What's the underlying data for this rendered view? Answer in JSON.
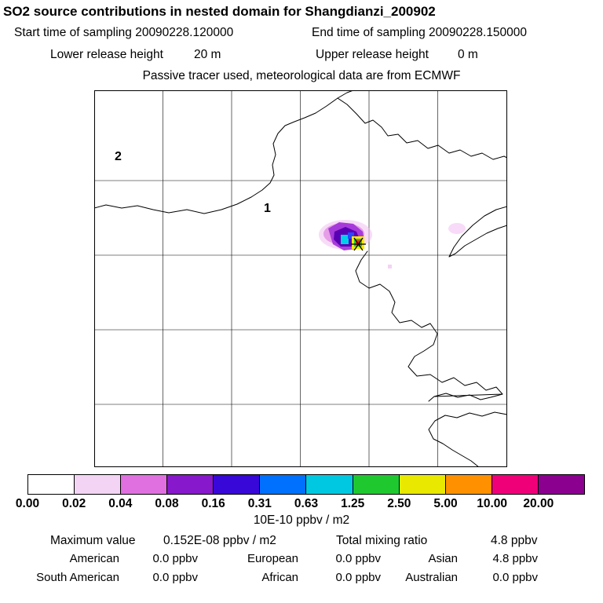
{
  "header": {
    "title": "SO2 source contributions in nested domain for Shangdianzi_200902",
    "start_line": "Start time of sampling 20090228.120000",
    "end_line": "End time of sampling 20090228.150000",
    "lower_release_label": "Lower release height",
    "lower_release_value": "20 m",
    "upper_release_label": "Upper release height",
    "upper_release_value": "0 m",
    "tracer_line": "Passive tracer used, meteorological data are from ECMWF"
  },
  "map": {
    "domain_label_outer": "2",
    "domain_label_inner": "1"
  },
  "footer": {
    "unit_label": "10E-10 ppbv / m2",
    "maximum_label": "Maximum value",
    "maximum_value": "0.152E-08 ppbv / m2",
    "total_label": "Total mixing ratio",
    "total_value": "4.8 ppbv",
    "regions": [
      {
        "name": "American",
        "value": "0.0 ppbv"
      },
      {
        "name": "European",
        "value": "0.0 ppbv"
      },
      {
        "name": "Asian",
        "value": "4.8 ppbv"
      },
      {
        "name": "South American",
        "value": "0.0 ppbv"
      },
      {
        "name": "African",
        "value": "0.0 ppbv"
      },
      {
        "name": "Australian",
        "value": "0.0 ppbv"
      }
    ]
  },
  "chart_data": {
    "type": "heatmap",
    "title": "SO2 source contributions in nested domain for Shangdianzi_200902",
    "station": "Shangdianzi_200902",
    "sampling_start": "20090228.120000",
    "sampling_end": "20090228.150000",
    "lower_release_height_m": 20,
    "upper_release_height_m": 0,
    "tracer_note": "Passive tracer used, meteorological data are from ECMWF",
    "colorbar": {
      "unit": "10E-10 ppbv / m2",
      "levels": [
        0.0,
        0.02,
        0.04,
        0.08,
        0.16,
        0.31,
        0.63,
        1.25,
        2.5,
        5.0,
        10.0,
        20.0
      ],
      "tick_labels": [
        "0.00",
        "0.02",
        "0.04",
        "0.08",
        "0.16",
        "0.31",
        "0.63",
        "1.25",
        "2.50",
        "5.00",
        "10.00",
        "20.00"
      ],
      "colors": [
        "#ffffff",
        "#f4d4f4",
        "#e070e0",
        "#8818cc",
        "#3808d8",
        "#0070ff",
        "#00c8e0",
        "#20c830",
        "#e8e800",
        "#ff9000",
        "#f00078",
        "#8c0090"
      ]
    },
    "map": {
      "grid_columns": 6,
      "grid_rows": 5,
      "domain_labels": [
        "2",
        "1"
      ],
      "receptor_marker": "black asterisk at plume maximum"
    },
    "maximum_value_text": "0.152E-08 ppbv / m2",
    "total_mixing_ratio_ppbv": 4.8,
    "source_contributions_ppbv": {
      "American": 0.0,
      "European": 0.0,
      "Asian": 4.8,
      "South American": 0.0,
      "African": 0.0,
      "Australian": 0.0
    }
  }
}
